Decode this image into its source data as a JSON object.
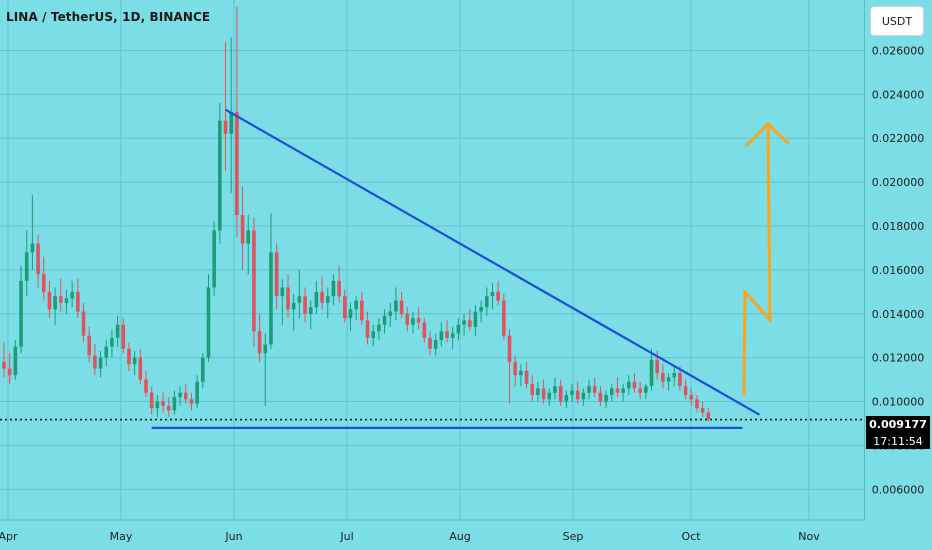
{
  "header": {
    "title": "LINA / TetherUS, 1D, BINANCE",
    "currency_button": "USDT"
  },
  "price_tag": {
    "value": "0.009177",
    "countdown": "17:11:54"
  },
  "chart_data": {
    "type": "candlestick",
    "symbol": "LINA / TetherUS",
    "interval": "1D",
    "exchange": "BINANCE",
    "x_ticks": [
      "Apr",
      "May",
      "Jun",
      "Jul",
      "Aug",
      "Sep",
      "Oct",
      "Nov"
    ],
    "y_ticks": [
      "0.006000",
      "0.008000",
      "0.010000",
      "0.012000",
      "0.014000",
      "0.016000",
      "0.018000",
      "0.020000",
      "0.022000",
      "0.024000",
      "0.026000"
    ],
    "ylim": [
      0.0046,
      0.0283
    ],
    "last_price": 0.009177,
    "candles": [
      [
        0.0118,
        0.0127,
        0.0111,
        0.0115
      ],
      [
        0.0115,
        0.0122,
        0.0108,
        0.0112
      ],
      [
        0.0112,
        0.0128,
        0.011,
        0.0125
      ],
      [
        0.0125,
        0.0162,
        0.0122,
        0.0155
      ],
      [
        0.0155,
        0.0178,
        0.0148,
        0.0168
      ],
      [
        0.0168,
        0.0194,
        0.016,
        0.0172
      ],
      [
        0.0172,
        0.0176,
        0.0152,
        0.0158
      ],
      [
        0.0158,
        0.0166,
        0.0146,
        0.015
      ],
      [
        0.015,
        0.0155,
        0.0138,
        0.0142
      ],
      [
        0.0142,
        0.0152,
        0.0135,
        0.0148
      ],
      [
        0.0148,
        0.0156,
        0.0141,
        0.0145
      ],
      [
        0.0145,
        0.0151,
        0.014,
        0.0147
      ],
      [
        0.0147,
        0.0155,
        0.0143,
        0.015
      ],
      [
        0.015,
        0.0156,
        0.0138,
        0.0141
      ],
      [
        0.0141,
        0.0145,
        0.0127,
        0.013
      ],
      [
        0.013,
        0.0134,
        0.0118,
        0.0121
      ],
      [
        0.0121,
        0.0126,
        0.0112,
        0.0115
      ],
      [
        0.0115,
        0.0123,
        0.0111,
        0.012
      ],
      [
        0.012,
        0.0128,
        0.0116,
        0.0125
      ],
      [
        0.0125,
        0.0133,
        0.012,
        0.0129
      ],
      [
        0.0129,
        0.0139,
        0.0125,
        0.0135
      ],
      [
        0.0135,
        0.0138,
        0.0122,
        0.0124
      ],
      [
        0.0124,
        0.0127,
        0.0114,
        0.0117
      ],
      [
        0.0117,
        0.0123,
        0.0112,
        0.012
      ],
      [
        0.012,
        0.0124,
        0.0108,
        0.011
      ],
      [
        0.011,
        0.0114,
        0.0102,
        0.0104
      ],
      [
        0.0104,
        0.0107,
        0.0094,
        0.0097
      ],
      [
        0.0097,
        0.0103,
        0.0093,
        0.01
      ],
      [
        0.01,
        0.0104,
        0.0095,
        0.0098
      ],
      [
        0.0098,
        0.0102,
        0.0093,
        0.0096
      ],
      [
        0.0096,
        0.0105,
        0.0094,
        0.0102
      ],
      [
        0.0102,
        0.0107,
        0.0098,
        0.0104
      ],
      [
        0.0104,
        0.0108,
        0.0099,
        0.0101
      ],
      [
        0.0101,
        0.0104,
        0.0096,
        0.0099
      ],
      [
        0.0099,
        0.0112,
        0.0097,
        0.0109
      ],
      [
        0.0109,
        0.0122,
        0.0106,
        0.012
      ],
      [
        0.012,
        0.0158,
        0.0118,
        0.0152
      ],
      [
        0.0152,
        0.0182,
        0.0148,
        0.0178
      ],
      [
        0.0178,
        0.0236,
        0.0172,
        0.0228
      ],
      [
        0.0228,
        0.0264,
        0.0205,
        0.0222
      ],
      [
        0.0222,
        0.0266,
        0.0195,
        0.0232
      ],
      [
        0.0232,
        0.028,
        0.0175,
        0.0185
      ],
      [
        0.0185,
        0.0198,
        0.016,
        0.0172
      ],
      [
        0.0172,
        0.0185,
        0.0158,
        0.0178
      ],
      [
        0.0178,
        0.0184,
        0.0125,
        0.0132
      ],
      [
        0.0132,
        0.014,
        0.0118,
        0.0122
      ],
      [
        0.0122,
        0.0131,
        0.0098,
        0.0126
      ],
      [
        0.0126,
        0.0186,
        0.0124,
        0.0168
      ],
      [
        0.0168,
        0.0172,
        0.0142,
        0.0148
      ],
      [
        0.0148,
        0.0156,
        0.0135,
        0.0152
      ],
      [
        0.0152,
        0.0158,
        0.0138,
        0.0142
      ],
      [
        0.0142,
        0.0149,
        0.0132,
        0.0145
      ],
      [
        0.0145,
        0.016,
        0.0138,
        0.0148
      ],
      [
        0.0148,
        0.0152,
        0.0136,
        0.014
      ],
      [
        0.014,
        0.0146,
        0.0133,
        0.0143
      ],
      [
        0.0143,
        0.0155,
        0.014,
        0.015
      ],
      [
        0.015,
        0.0157,
        0.0142,
        0.0145
      ],
      [
        0.0145,
        0.0152,
        0.0138,
        0.0148
      ],
      [
        0.0148,
        0.0158,
        0.0144,
        0.0155
      ],
      [
        0.0155,
        0.0162,
        0.0145,
        0.0148
      ],
      [
        0.0148,
        0.0151,
        0.0136,
        0.0138
      ],
      [
        0.0138,
        0.0145,
        0.0132,
        0.0142
      ],
      [
        0.0142,
        0.0148,
        0.0137,
        0.0146
      ],
      [
        0.0146,
        0.015,
        0.0135,
        0.0137
      ],
      [
        0.0137,
        0.0141,
        0.0126,
        0.0129
      ],
      [
        0.0129,
        0.0135,
        0.0125,
        0.0132
      ],
      [
        0.0132,
        0.0138,
        0.0128,
        0.0135
      ],
      [
        0.0135,
        0.0142,
        0.0131,
        0.0139
      ],
      [
        0.0139,
        0.0145,
        0.0134,
        0.0141
      ],
      [
        0.0141,
        0.0152,
        0.0137,
        0.0146
      ],
      [
        0.0146,
        0.015,
        0.0138,
        0.014
      ],
      [
        0.014,
        0.0143,
        0.0132,
        0.0135
      ],
      [
        0.0135,
        0.0141,
        0.0131,
        0.0138
      ],
      [
        0.0138,
        0.0143,
        0.0133,
        0.0136
      ],
      [
        0.0136,
        0.0138,
        0.0127,
        0.0129
      ],
      [
        0.0129,
        0.0132,
        0.0121,
        0.0124
      ],
      [
        0.0124,
        0.0131,
        0.0121,
        0.0128
      ],
      [
        0.0128,
        0.0136,
        0.0125,
        0.0132
      ],
      [
        0.0132,
        0.0137,
        0.0127,
        0.0129
      ],
      [
        0.0129,
        0.0134,
        0.0124,
        0.0131
      ],
      [
        0.0131,
        0.0138,
        0.0128,
        0.0135
      ],
      [
        0.0135,
        0.014,
        0.013,
        0.0137
      ],
      [
        0.0137,
        0.0142,
        0.0132,
        0.0134
      ],
      [
        0.0134,
        0.0144,
        0.013,
        0.0141
      ],
      [
        0.0141,
        0.0146,
        0.0136,
        0.0143
      ],
      [
        0.0143,
        0.0152,
        0.0139,
        0.0148
      ],
      [
        0.0148,
        0.0154,
        0.0142,
        0.015
      ],
      [
        0.015,
        0.0155,
        0.0144,
        0.0146
      ],
      [
        0.0146,
        0.0149,
        0.0128,
        0.013
      ],
      [
        0.013,
        0.0133,
        0.0099,
        0.0118
      ],
      [
        0.0118,
        0.0121,
        0.0107,
        0.0112
      ],
      [
        0.0112,
        0.0117,
        0.0107,
        0.0114
      ],
      [
        0.0114,
        0.0118,
        0.0106,
        0.0108
      ],
      [
        0.0108,
        0.0112,
        0.01,
        0.0103
      ],
      [
        0.0103,
        0.0109,
        0.01,
        0.0106
      ],
      [
        0.0106,
        0.011,
        0.0099,
        0.0101
      ],
      [
        0.0101,
        0.0106,
        0.0098,
        0.0104
      ],
      [
        0.0104,
        0.0111,
        0.0101,
        0.0107
      ],
      [
        0.0107,
        0.011,
        0.0098,
        0.01
      ],
      [
        0.01,
        0.0105,
        0.0097,
        0.0103
      ],
      [
        0.0103,
        0.0108,
        0.01,
        0.0105
      ],
      [
        0.0105,
        0.0109,
        0.0099,
        0.0101
      ],
      [
        0.0101,
        0.0106,
        0.0098,
        0.0104
      ],
      [
        0.0104,
        0.011,
        0.0101,
        0.0107
      ],
      [
        0.0107,
        0.0111,
        0.0102,
        0.0104
      ],
      [
        0.0104,
        0.0107,
        0.0098,
        0.01
      ],
      [
        0.01,
        0.0105,
        0.0097,
        0.0103
      ],
      [
        0.0103,
        0.0108,
        0.01,
        0.0106
      ],
      [
        0.0106,
        0.0111,
        0.0102,
        0.0104
      ],
      [
        0.0104,
        0.0108,
        0.01,
        0.0106
      ],
      [
        0.0106,
        0.0112,
        0.0103,
        0.0109
      ],
      [
        0.0109,
        0.0113,
        0.0104,
        0.0106
      ],
      [
        0.0106,
        0.0109,
        0.0101,
        0.0104
      ],
      [
        0.0104,
        0.0108,
        0.0101,
        0.0107
      ],
      [
        0.0107,
        0.0124,
        0.0105,
        0.0119
      ],
      [
        0.0119,
        0.0123,
        0.011,
        0.0113
      ],
      [
        0.0113,
        0.0117,
        0.0106,
        0.0109
      ],
      [
        0.0109,
        0.0113,
        0.0105,
        0.0111
      ],
      [
        0.0111,
        0.0116,
        0.0107,
        0.0113
      ],
      [
        0.0113,
        0.0116,
        0.0105,
        0.0107
      ],
      [
        0.0107,
        0.011,
        0.0101,
        0.0103
      ],
      [
        0.0103,
        0.0106,
        0.0098,
        0.0101
      ],
      [
        0.0101,
        0.0103,
        0.0095,
        0.0097
      ],
      [
        0.0097,
        0.01,
        0.0093,
        0.0095
      ],
      [
        0.0095,
        0.0097,
        0.0091,
        0.0092
      ]
    ],
    "annotations": [
      {
        "type": "trendline",
        "color": "#1a4fd6",
        "from": [
          39,
          0.0233
        ],
        "to": [
          133,
          0.0094
        ]
      },
      {
        "type": "support",
        "color": "#1a4fd6",
        "from": [
          26,
          0.0088
        ],
        "to": [
          130,
          0.0088
        ]
      },
      {
        "type": "dotted-price-line",
        "color": "#111111",
        "price": 0.009177
      },
      {
        "type": "arrow",
        "color": "#f5a623"
      }
    ]
  }
}
